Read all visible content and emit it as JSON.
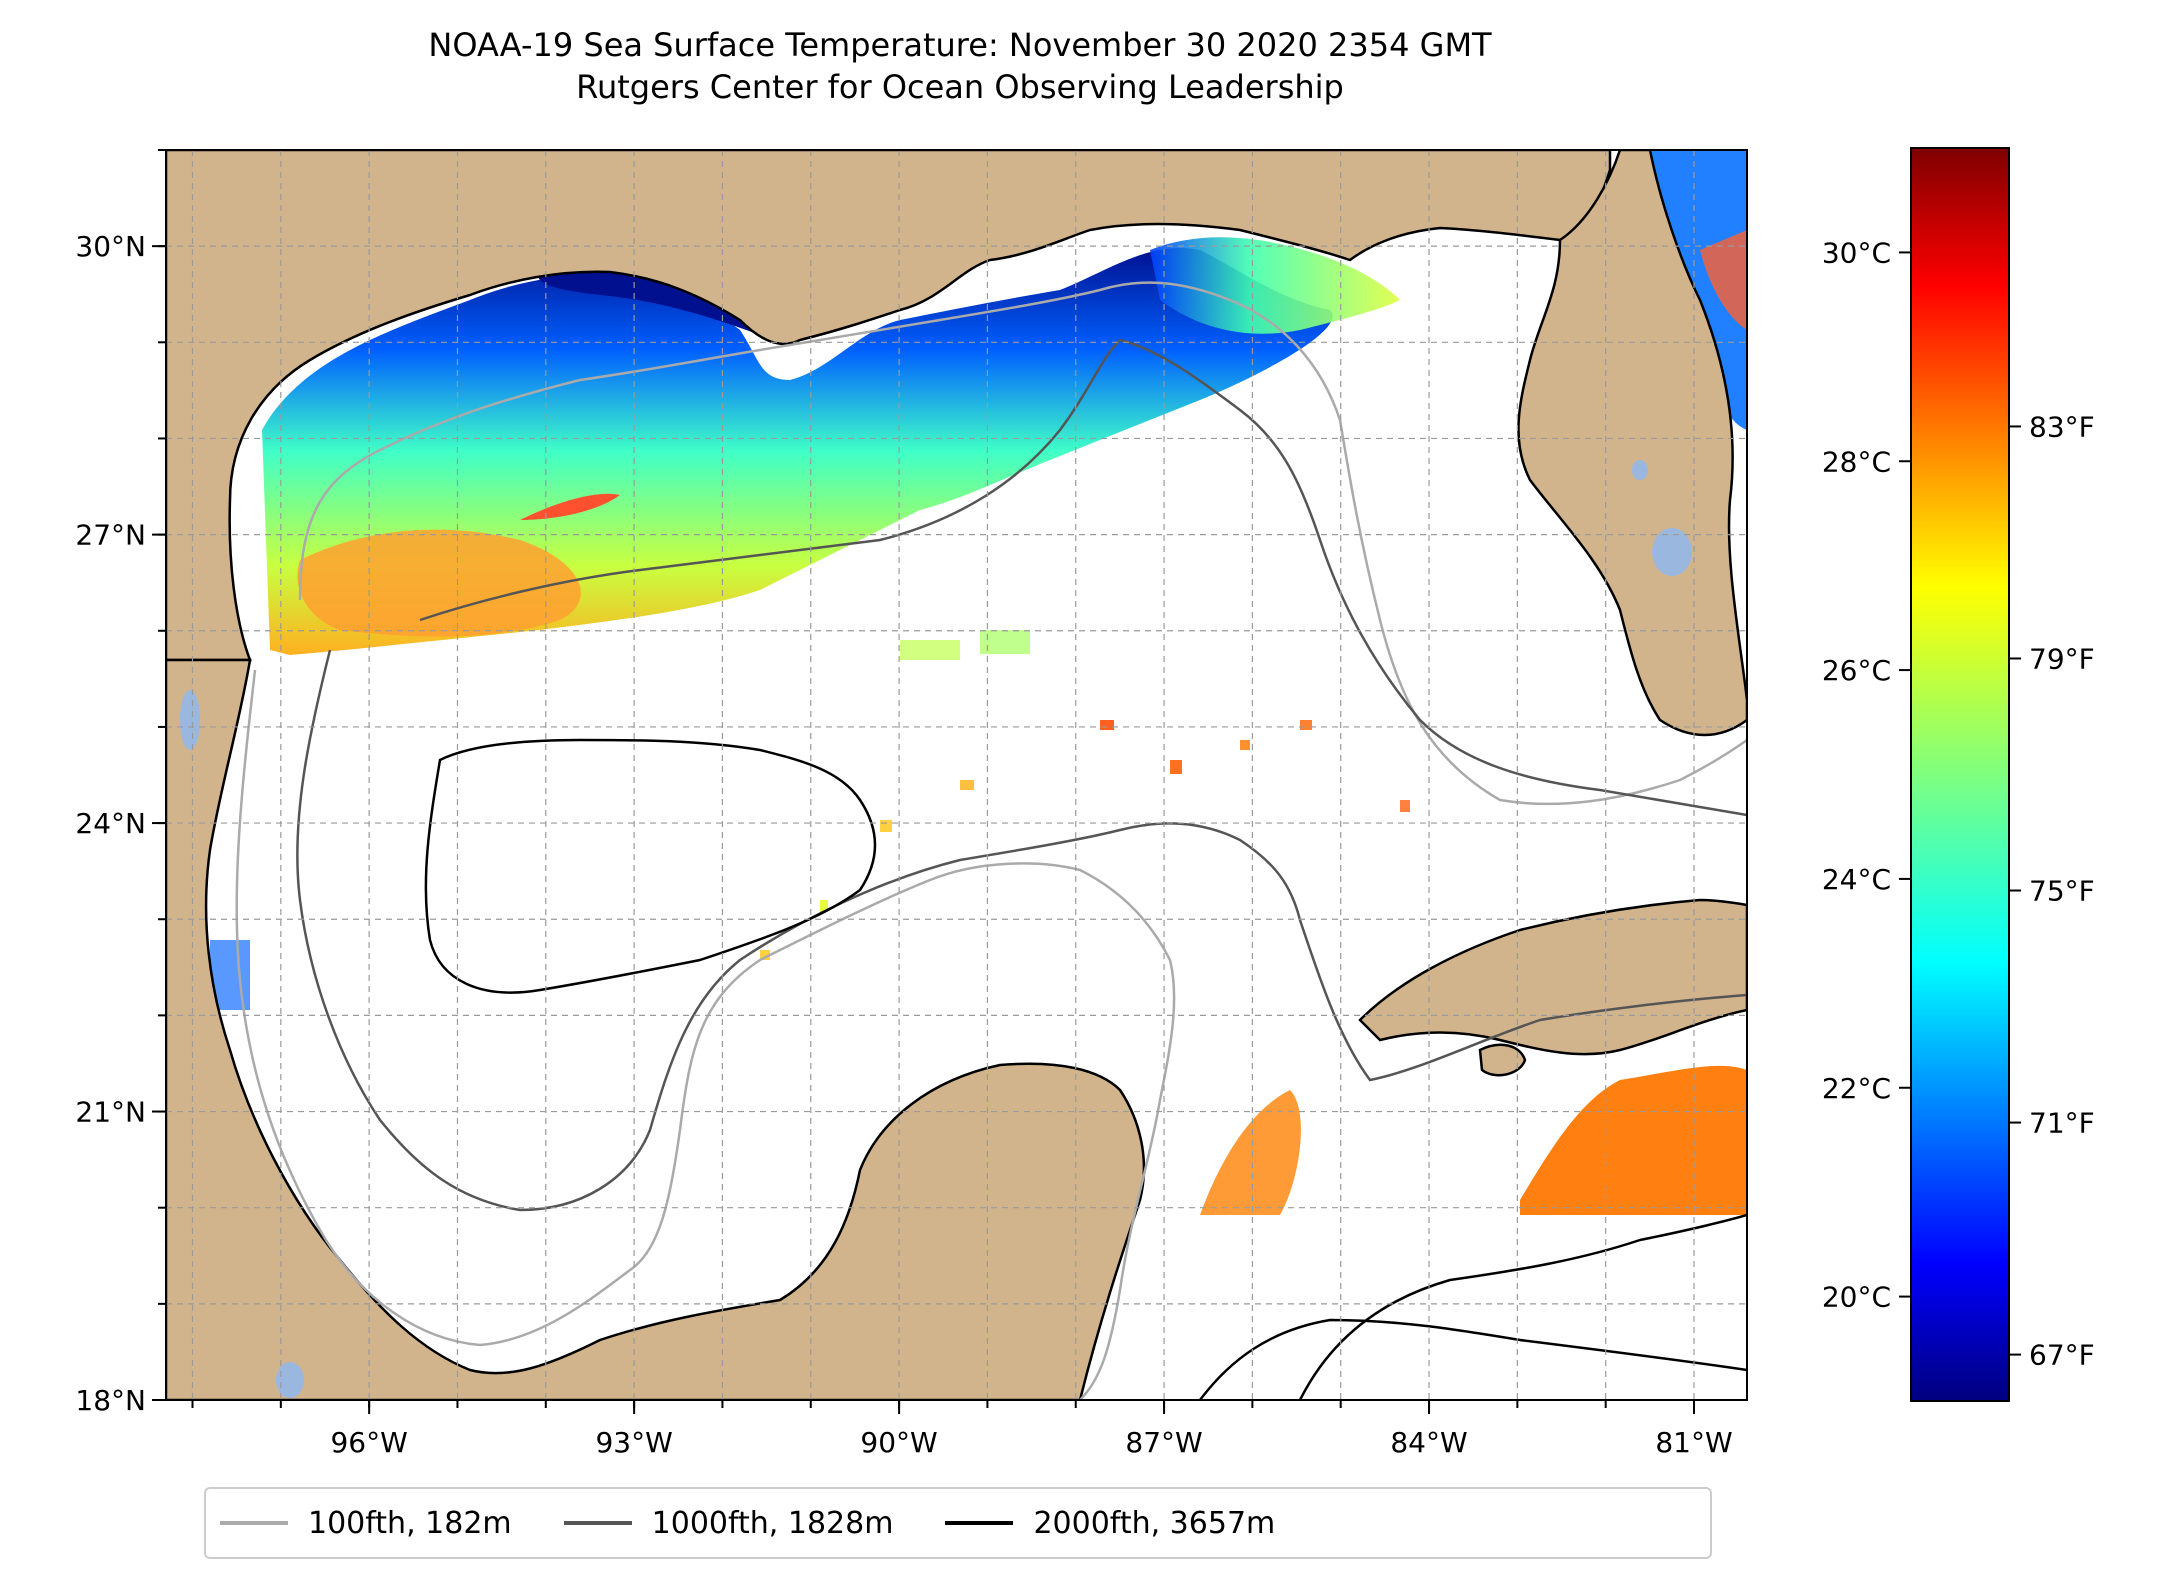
{
  "title": {
    "line1": "NOAA-19 Sea Surface Temperature: November 30 2020 2354 GMT",
    "line2": "Rutgers Center for Ocean Observing Leadership"
  },
  "map": {
    "lon_range": [
      -98.3,
      -80.4
    ],
    "lat_range": [
      18,
      31
    ],
    "lat_ticks": [
      {
        "value": 18,
        "label": "18°N"
      },
      {
        "value": 21,
        "label": "21°N"
      },
      {
        "value": 24,
        "label": "24°N"
      },
      {
        "value": 27,
        "label": "27°N"
      },
      {
        "value": 30,
        "label": "30°N"
      }
    ],
    "lon_ticks": [
      {
        "value": -96,
        "label": "96°W"
      },
      {
        "value": -93,
        "label": "93°W"
      },
      {
        "value": -90,
        "label": "90°W"
      },
      {
        "value": -87,
        "label": "87°W"
      },
      {
        "value": -84,
        "label": "84°W"
      },
      {
        "value": -81,
        "label": "81°W"
      }
    ],
    "colors": {
      "land": "#d2b48c",
      "water": "#ffffff",
      "lakes": "#9ab7e0",
      "grid": "#9a9a9a"
    }
  },
  "colorbar": {
    "colormap": "jet",
    "range_c": [
      19.0,
      31.0
    ],
    "celsius_ticks": [
      {
        "value": 20,
        "label": "20°C"
      },
      {
        "value": 22,
        "label": "22°C"
      },
      {
        "value": 24,
        "label": "24°C"
      },
      {
        "value": 26,
        "label": "26°C"
      },
      {
        "value": 28,
        "label": "28°C"
      },
      {
        "value": 30,
        "label": "30°C"
      }
    ],
    "fahrenheit_ticks": [
      {
        "value": 67,
        "label": "67°F"
      },
      {
        "value": 71,
        "label": "71°F"
      },
      {
        "value": 75,
        "label": "75°F"
      },
      {
        "value": 79,
        "label": "79°F"
      },
      {
        "value": 83,
        "label": "83°F"
      }
    ]
  },
  "legend": [
    {
      "label": "100fth, 182m",
      "color": "#aaaaaa"
    },
    {
      "label": "1000fth, 1828m",
      "color": "#555555"
    },
    {
      "label": "2000fth, 3657m",
      "color": "#000000"
    }
  ]
}
